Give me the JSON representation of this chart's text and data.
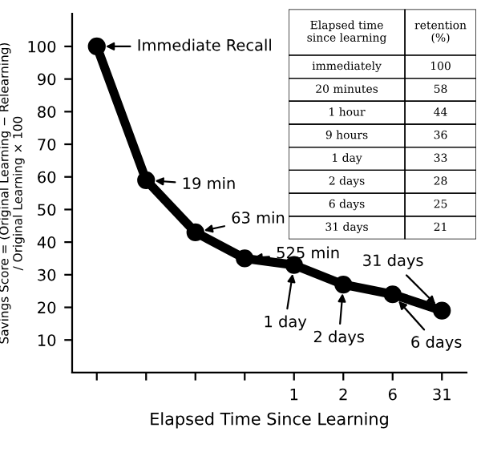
{
  "chart_data": [
    {
      "type": "line",
      "xlabel": "Elapsed Time Since Learning",
      "ylabel": "Savings Score = (Original Learning − Relearning)\n/ Original Learning × 100",
      "categories": [
        null,
        null,
        null,
        null,
        "1",
        "2",
        "6",
        "31"
      ],
      "series": [
        {
          "color": "#000000",
          "values": [
            100,
            59,
            43,
            35,
            33,
            27,
            24,
            19
          ]
        }
      ],
      "marker": "circle",
      "line_style": "solid",
      "grid": false,
      "legend": false,
      "ylim": [
        0,
        110
      ],
      "yticks": [
        10,
        20,
        30,
        40,
        50,
        60,
        70,
        80,
        90,
        100
      ],
      "annotations": [
        "Immediate Recall",
        "19 min",
        "63 min",
        "525 min",
        {
          "text": "1 day",
          "x": "1",
          "y": 33
        },
        {
          "text": "2 days",
          "x": "2",
          "y": 27
        },
        {
          "text": "6 days",
          "x": "6",
          "y": 24
        },
        {
          "text": "31 days",
          "x": "31",
          "y": 19
        }
      ]
    },
    {
      "type": "other",
      "xlabel": "Elapsed time\nsince learning",
      "ylabel": "retention\n(%)",
      "data_labels": true,
      "categories": [
        "immediately",
        "20 minutes",
        "1 hour",
        "9 hours",
        "1 day",
        "2 days",
        "6 days",
        "31 days"
      ],
      "values": [
        100,
        58,
        44,
        36,
        33,
        28,
        25,
        21
      ]
    }
  ]
}
